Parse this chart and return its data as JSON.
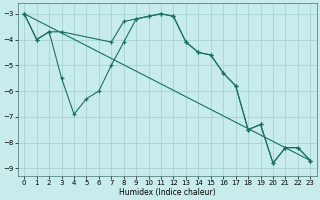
{
  "xlabel": "Humidex (Indice chaleur)",
  "bg_color": "#c8ecec",
  "grid_color": "#a8d4d4",
  "line_color": "#1a7060",
  "xlim": [
    -0.5,
    23.5
  ],
  "ylim": [
    -9.3,
    -2.6
  ],
  "yticks": [
    -9,
    -8,
    -7,
    -6,
    -5,
    -4,
    -3
  ],
  "xticks": [
    0,
    1,
    2,
    3,
    4,
    5,
    6,
    7,
    8,
    9,
    10,
    11,
    12,
    13,
    14,
    15,
    16,
    17,
    18,
    19,
    20,
    21,
    22,
    23
  ],
  "line1_x": [
    0,
    1,
    2,
    3,
    7,
    8,
    9,
    10,
    11,
    12,
    13,
    14,
    15,
    16,
    17,
    18,
    19,
    20,
    21,
    22,
    23
  ],
  "line1_y": [
    -3.0,
    -4.0,
    -3.7,
    -3.7,
    -4.1,
    -3.3,
    -3.2,
    -3.1,
    -3.0,
    -3.1,
    -4.1,
    -4.5,
    -4.6,
    -5.3,
    -5.8,
    -7.5,
    -7.3,
    -8.8,
    -8.2,
    -8.2,
    -8.7
  ],
  "line2_x": [
    0,
    1,
    2,
    3,
    4,
    5,
    6,
    7,
    8,
    9,
    10,
    11,
    12,
    13,
    14,
    15,
    16,
    17,
    18,
    19,
    20,
    21,
    22,
    23
  ],
  "line2_y": [
    -3.0,
    -4.0,
    -3.7,
    -5.5,
    -6.9,
    -6.3,
    -6.0,
    -5.0,
    -4.1,
    -3.2,
    -3.1,
    -3.0,
    -3.1,
    -4.1,
    -4.5,
    -4.6,
    -5.3,
    -5.8,
    -7.5,
    -7.3,
    -8.8,
    -8.2,
    -8.2,
    -8.7
  ],
  "line3_x": [
    0,
    23
  ],
  "line3_y": [
    -3.0,
    -8.7
  ]
}
